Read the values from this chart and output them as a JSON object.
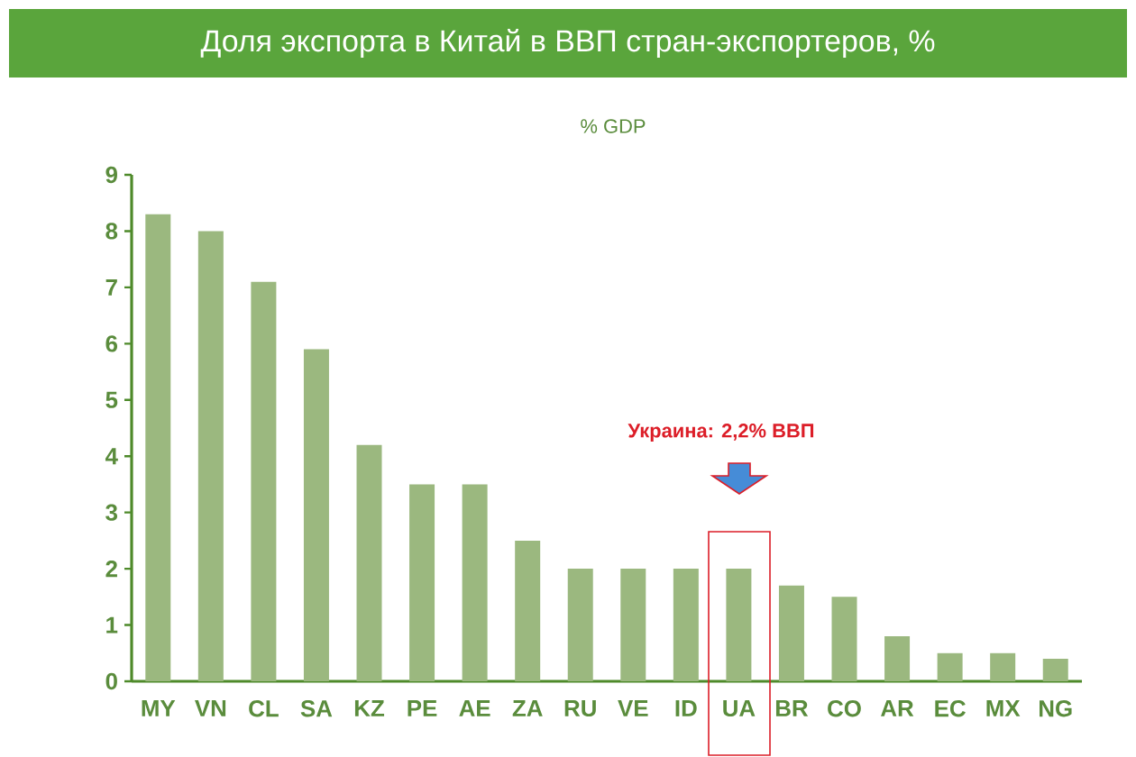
{
  "chart_data": {
    "type": "bar",
    "title": "Доля экспорта в Китай в ВВП стран-экспортеров, %",
    "ylabel": "% GDP",
    "categories": [
      "MY",
      "VN",
      "CL",
      "SA",
      "KZ",
      "PE",
      "AE",
      "ZA",
      "RU",
      "VE",
      "ID",
      "UA",
      "BR",
      "CO",
      "AR",
      "EC",
      "MX",
      "NG"
    ],
    "values": [
      8.3,
      8.0,
      7.1,
      5.9,
      4.2,
      3.5,
      3.5,
      2.5,
      2.0,
      2.0,
      2.0,
      2.0,
      1.7,
      1.5,
      0.8,
      0.5,
      0.5,
      0.4
    ],
    "color": "#9bb87f",
    "ylim": [
      0,
      9
    ],
    "yticks": [
      0,
      1,
      2,
      3,
      4,
      5,
      6,
      7,
      8,
      9
    ],
    "annotations": [
      "Украина: 2,2% ВВП"
    ]
  }
}
